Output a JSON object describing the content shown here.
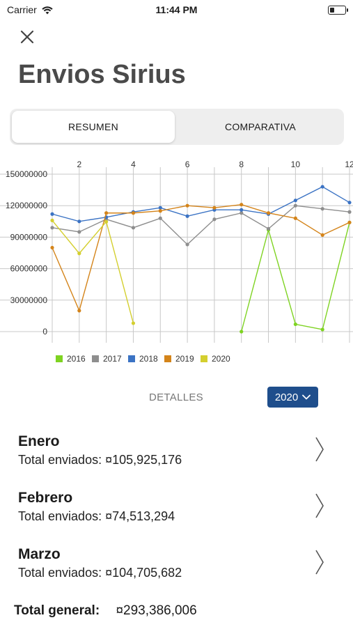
{
  "status_bar": {
    "carrier": "Carrier",
    "time": "11:44 PM",
    "battery_level": 0.3
  },
  "header": {
    "title": "Envios Sirius"
  },
  "tabs": [
    {
      "label": "RESUMEN",
      "active": true
    },
    {
      "label": "COMPARATIVA",
      "active": false
    }
  ],
  "chart_data": {
    "type": "line",
    "x_ticks": [
      "2",
      "4",
      "6",
      "8",
      "10",
      "12"
    ],
    "y_ticks": [
      "150000000",
      "120000000",
      "90000000",
      "60000000",
      "30000000",
      "0"
    ],
    "xlim": [
      1,
      12
    ],
    "ylim": [
      0,
      150000000
    ],
    "grid": true,
    "legend_position": "bottom-left",
    "series": [
      {
        "name": "2016",
        "color": "#7ed321",
        "points": [
          [
            8,
            0
          ],
          [
            9,
            97000000
          ],
          [
            10,
            7000000
          ],
          [
            11,
            2000000
          ],
          [
            12,
            104000000
          ]
        ]
      },
      {
        "name": "2017",
        "color": "#8e8e8e",
        "points": [
          [
            1,
            99000000
          ],
          [
            2,
            95000000
          ],
          [
            3,
            107000000
          ],
          [
            4,
            99000000
          ],
          [
            5,
            108000000
          ],
          [
            6,
            83000000
          ],
          [
            7,
            107000000
          ],
          [
            8,
            113000000
          ],
          [
            9,
            98000000
          ],
          [
            10,
            120000000
          ],
          [
            11,
            117000000
          ],
          [
            12,
            114000000
          ]
        ]
      },
      {
        "name": "2018",
        "color": "#3b73c4",
        "points": [
          [
            1,
            112000000
          ],
          [
            2,
            105000000
          ],
          [
            3,
            109000000
          ],
          [
            4,
            114000000
          ],
          [
            5,
            118000000
          ],
          [
            6,
            110000000
          ],
          [
            7,
            116000000
          ],
          [
            8,
            116000000
          ],
          [
            9,
            112000000
          ],
          [
            10,
            125000000
          ],
          [
            11,
            138000000
          ],
          [
            12,
            123000000
          ]
        ]
      },
      {
        "name": "2019",
        "color": "#d4841a",
        "points": [
          [
            1,
            80000000
          ],
          [
            2,
            20000000
          ],
          [
            3,
            113000000
          ],
          [
            4,
            113000000
          ],
          [
            5,
            115000000
          ],
          [
            6,
            120000000
          ],
          [
            7,
            118000000
          ],
          [
            8,
            121000000
          ],
          [
            9,
            113000000
          ],
          [
            10,
            108000000
          ],
          [
            11,
            92000000
          ],
          [
            12,
            104000000
          ]
        ]
      },
      {
        "name": "2020",
        "color": "#d4cf2f",
        "points": [
          [
            1,
            105925176
          ],
          [
            2,
            74513294
          ],
          [
            3,
            104705682
          ],
          [
            4,
            8000000
          ]
        ]
      }
    ]
  },
  "details": {
    "label": "DETALLES",
    "selected_year": "2020"
  },
  "months": [
    {
      "name": "Enero",
      "total": "Total enviados: ¤105,925,176"
    },
    {
      "name": "Febrero",
      "total": "Total enviados: ¤74,513,294"
    },
    {
      "name": "Marzo",
      "total": "Total enviados: ¤104,705,682"
    }
  ],
  "summary": {
    "label": "Total general:",
    "value": "¤293,386,006"
  }
}
